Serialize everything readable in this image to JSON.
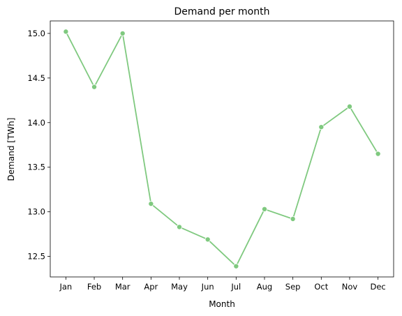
{
  "chart_data": {
    "type": "line",
    "title": "Demand per month",
    "xlabel": "Month",
    "ylabel": "Demand [TWh]",
    "categories": [
      "Jan",
      "Feb",
      "Mar",
      "Apr",
      "May",
      "Jun",
      "Jul",
      "Aug",
      "Sep",
      "Oct",
      "Nov",
      "Dec"
    ],
    "series": [
      {
        "values": [
          15.02,
          14.4,
          15.0,
          13.09,
          12.83,
          12.69,
          12.39,
          13.03,
          12.92,
          13.95,
          14.18,
          13.65
        ],
        "color": "#7fc97f"
      }
    ],
    "y_ticks": [
      12.5,
      13.0,
      13.5,
      14.0,
      14.5,
      15.0
    ],
    "y_tick_labels": [
      "12.5",
      "13.0",
      "13.5",
      "14.0",
      "14.5",
      "15.0"
    ],
    "ylim": [
      12.27,
      15.14
    ],
    "grid": false,
    "marker": "circle"
  }
}
